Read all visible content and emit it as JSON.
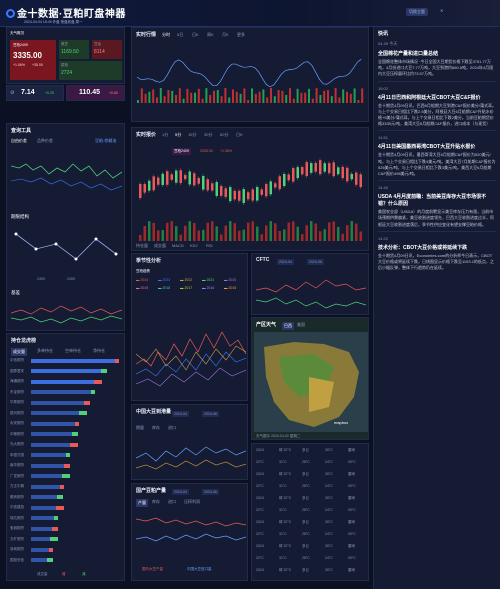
{
  "header": {
    "title": "金十数据·豆粕盯盘神器",
    "date_line": "2024-04-04 15:49  外盘 夜盘收盘 周一",
    "btn_left": "切换主题",
    "btn_right": "关闭"
  },
  "left_top": {
    "label": "天气概况",
    "price_label": "豆粕2409",
    "price": "3335.00",
    "change": "+1.06%",
    "change2": "+35.00",
    "mini1_label": "美豆",
    "mini1_val": "1169.50",
    "mini2_label": "豆油",
    "mini2_val": "8114",
    "mini3_label": "菜粕",
    "mini3_val": "2724",
    "sym1": "7.14",
    "sym1_chg": "+0.25",
    "sym2": "110.45",
    "sym2_chg": "+0.60"
  },
  "query": {
    "title": "查询工具",
    "tabs": [
      "自由价差",
      "品种价差",
      "豆粕-棕榈油"
    ],
    "section2": "期限结构",
    "section3": "基差",
    "legend": [
      "2409",
      "2405"
    ]
  },
  "kline": {
    "title": "实时行情",
    "tabs": [
      "分时",
      "5日",
      "日K",
      "周K",
      "月K",
      "更多"
    ]
  },
  "kline2": {
    "title": "实时报价",
    "tabs": [
      "1分",
      "5分",
      "15分",
      "30分",
      "60分",
      "日K"
    ],
    "price_tag": "豆粕2409",
    "price_val": "3335.00",
    "chg": "+1.06%",
    "bottom_tabs": [
      "持仓量",
      "成交量",
      "MACD",
      "KDJ",
      "RSI"
    ]
  },
  "season": {
    "title": "季节性分析",
    "sub": "豆粕趋势",
    "years": [
      "2024",
      "2023",
      "2022",
      "2021",
      "2020",
      "2019",
      "2018",
      "2017",
      "2016",
      "2015"
    ]
  },
  "cftc": {
    "title": "CFTC",
    "d1": "2024-04",
    "d2": "2024-06"
  },
  "weather": {
    "title": "产区天气",
    "tab": "巴西",
    "tab2": "美国",
    "date": "天气图示  2024-04-02 星期二",
    "footer": "巴西大豆主产区天气"
  },
  "position": {
    "title": "持仓龙虎榜",
    "tabs": [
      "成交量",
      "多单持仓",
      "空单持仓",
      "净持仓"
    ],
    "legend": [
      "成交量",
      "增",
      "减"
    ],
    "brokers": [
      "中信期货",
      "国泰君安",
      "海通期货",
      "东证期货",
      "华泰期货",
      "银河期货",
      "永安期货",
      "中粮期货",
      "光大期货",
      "申银万国",
      "南华期货",
      "广发期货",
      "方正中期",
      "徽商期货",
      "中信建投",
      "瑞达期货",
      "宝城期货",
      "五矿期货",
      "浙商期货",
      "国投安信"
    ],
    "values": [
      0.95,
      0.8,
      0.72,
      0.68,
      0.6,
      0.55,
      0.5,
      0.47,
      0.44,
      0.4,
      0.38,
      0.35,
      0.33,
      0.3,
      0.28,
      0.26,
      0.24,
      0.22,
      0.2,
      0.18
    ]
  },
  "supply": {
    "title": "中国大豆到港量",
    "d1": "2024-04",
    "d2": "2024-06",
    "sub": "期量",
    "m1": "库存",
    "m2": "进口"
  },
  "demand": {
    "title": "国产豆粕产量",
    "d1": "2024-04",
    "d2": "2024-06",
    "tabs": [
      "产量",
      "库存",
      "进口",
      "压榨利润"
    ],
    "legend": [
      "国内大豆产量",
      "中国大豆进口量"
    ]
  },
  "temps": [
    [
      "2024",
      "晴 22°C",
      "多云",
      "26°C",
      "雷雨"
    ],
    [
      "22°C",
      "31°C",
      "28°C",
      "24°C",
      "30°C"
    ]
  ],
  "news": {
    "title": "快讯",
    "date": "04-09 今天",
    "items": [
      {
        "h": "全国棉花产量和进口量总结",
        "b": "全国棉花整体市场情况 ·今日全国大豆期货价格下跌至3751.77万吨，4月份进口大豆7.77万吨，大豆到港约660.5吨，2024年4月国内大豆压榨量环比约73.57万吨。",
        "t": "15:20"
      },
      {
        "h": "4月11日巴西和阿根廷大豆CBOT大豆C&F报价",
        "b": "金十期货4月09日讯，巴西6月船期大豆到港C&F报价美分/蒲式耳。与上个交易日相比下跌2.5美分，阿根廷大豆6月船期C&F升贴水价格+5美分/蒲式耳。与上个交易日相比下跌2美分。当前豆粕期货价格3335元/吨，美湾大豆6月船期C&F报价，进口成本（与现货）",
        "t": "15:02"
      },
      {
        "h": "4月11日美国墨西哥湾CBOT大豆升贴水报价",
        "b": "金十期货4月09日讯，墨西哥湾大豆6月船期C&F报价为520美元/吨，与上个交易日相比下跌4美元/吨。美湾大豆7月船期C&F报价为526美元/吨，与上个交易日相比下跌3美元/吨。美西大豆6月船期C&F报价498美元/吨。",
        "t": "14:51"
      },
      {
        "h": "USDA 4月月度前瞻：当前美豆库存大豆市场很不错？什么原因",
        "b": "美国农业部（USDA）的月度前瞻显示美豆库存压力有限，当前市场预期供需偏紧，美豆收割进度领先，巴西大豆收割进度过半，阿根廷大豆收割进度落后，季节性供应变化有望支撑豆粕价格。",
        "t": "14:40"
      },
      {
        "h": "技术分析：CBOT大豆价格或将延续下跌",
        "b": "金十期货4月09日讯，Economies.com的分析师今日表示，CBOT大豆价格或将延续下跌，日线图显示价格下跌至1193.1的低点，之后小幅反弹，整体下行趋势仍在延续。",
        "t": "14:22"
      }
    ]
  }
}
